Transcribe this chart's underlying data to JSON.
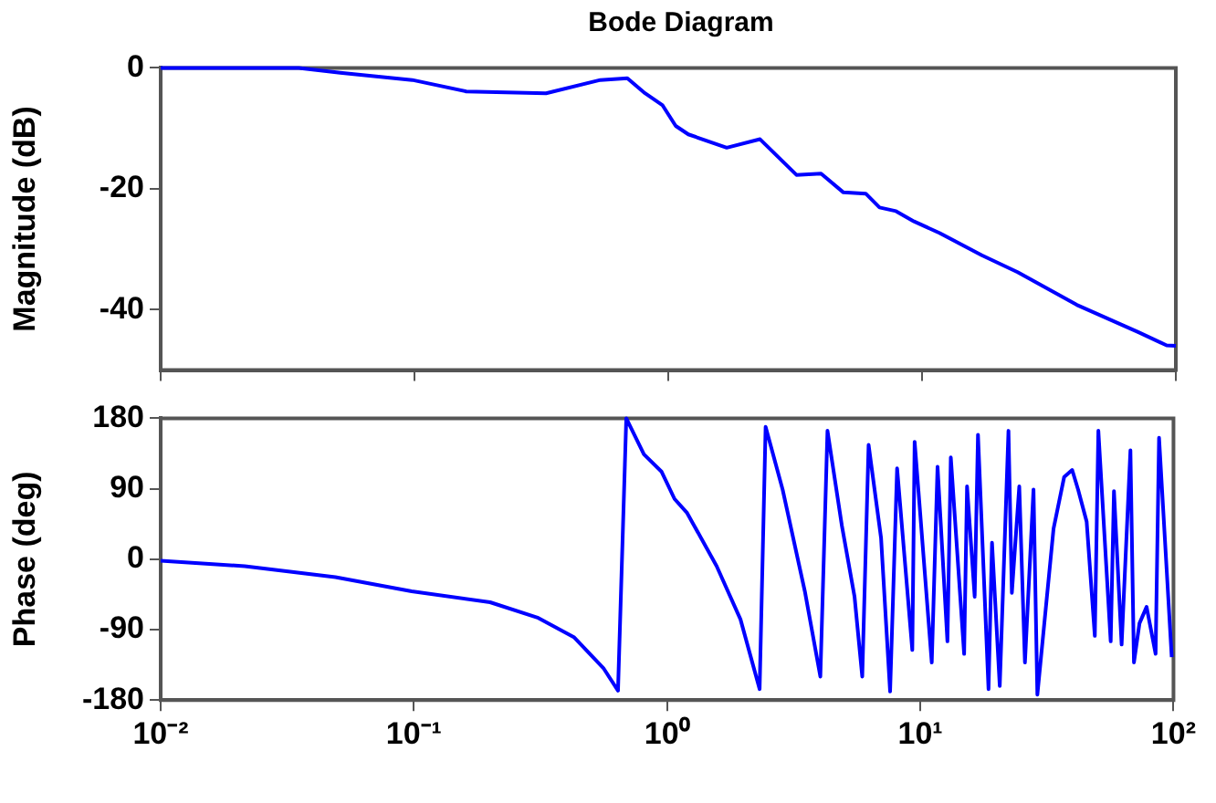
{
  "chart_data": [
    {
      "type": "line",
      "title": "Bode Diagram",
      "ylabel": "Magnitude (dB)",
      "log": "x",
      "marker": "none",
      "line_style": "solid",
      "grid": false,
      "legend": false,
      "tick_labels": "y",
      "xlim": [
        0.01,
        100
      ],
      "ylim": [
        -50,
        0
      ],
      "xticks": [
        {
          "value": 0.01,
          "label": null
        },
        {
          "value": 0.1,
          "label": null
        },
        {
          "value": 1,
          "label": null
        },
        {
          "value": 10,
          "label": null
        },
        {
          "value": 100,
          "label": null
        }
      ],
      "yticks": [
        -40,
        -20,
        0
      ],
      "x": [
        0.01,
        0.035,
        0.051,
        0.098,
        0.16,
        0.33,
        0.54,
        0.69,
        0.81,
        0.95,
        1.07,
        1.2,
        1.7,
        2.3,
        3.2,
        4.0,
        4.9,
        6.0,
        6.8,
        7.9,
        9.3,
        11.7,
        17.2,
        23.8,
        40.7,
        71,
        92,
        100
      ],
      "series": [
        {
          "color": "#0000ff",
          "values": [
            0,
            0,
            -0.8,
            -2.0,
            -3.9,
            -4.2,
            -2.0,
            -1.7,
            -4.2,
            -6.2,
            -9.6,
            -11,
            -13.2,
            -11.8,
            -17.7,
            -17.5,
            -20.6,
            -20.8,
            -23.1,
            -23.7,
            -25.4,
            -27.3,
            -31,
            -33.8,
            -39.2,
            -43.7,
            -45.9,
            -46
          ]
        }
      ]
    },
    {
      "type": "line",
      "ylabel": "Phase (deg)",
      "log": "x",
      "marker": "none",
      "line_style": "solid",
      "grid": false,
      "legend": false,
      "xlim": [
        0.01,
        100
      ],
      "ylim": [
        -180,
        180
      ],
      "xticks": [
        {
          "value": 0.01,
          "label": "10⁻²"
        },
        {
          "value": 0.1,
          "label": "10⁻¹"
        },
        {
          "value": 1,
          "label": "10⁰"
        },
        {
          "value": 10,
          "label": "10¹"
        },
        {
          "value": 100,
          "label": "10²"
        }
      ],
      "yticks": [
        -180,
        -90,
        0,
        90,
        180
      ],
      "x": [
        0.01,
        0.0215,
        0.049,
        0.098,
        0.2,
        0.31,
        0.43,
        0.56,
        0.64,
        0.69,
        0.81,
        0.95,
        1.07,
        1.2,
        1.57,
        1.95,
        2.32,
        2.45,
        2.86,
        3.5,
        4.03,
        4.3,
        4.9,
        5.5,
        5.9,
        6.25,
        7.0,
        7.6,
        8.1,
        9.3,
        9.5,
        11.1,
        11.7,
        12.8,
        13.2,
        14.9,
        15.3,
        16.4,
        16.9,
        18.6,
        19.2,
        20.6,
        22.3,
        23.0,
        24.6,
        25.9,
        28,
        29.0,
        33.6,
        37,
        39.8,
        42,
        45.4,
        48.9,
        50.5,
        56.5,
        58.2,
        62.4,
        67.6,
        69.8,
        73.4,
        78.3,
        85,
        87.7,
        98.4
      ],
      "series": [
        {
          "color": "#0000ff",
          "values": [
            -2,
            -9,
            -23,
            -41,
            -55,
            -75,
            -100,
            -139,
            -168,
            180,
            134,
            112,
            77,
            59,
            -9,
            -77,
            -166,
            169,
            89,
            -41,
            -150,
            164,
            43,
            -48,
            -150,
            146,
            27,
            -169,
            116,
            -116,
            150,
            -132,
            118,
            -105,
            130,
            -121,
            93,
            -48,
            159,
            -166,
            21,
            -162,
            164,
            -43,
            93,
            -132,
            89,
            -173,
            39,
            105,
            114,
            89,
            48,
            -98,
            164,
            -105,
            87,
            -109,
            139,
            -132,
            -82,
            -61,
            -121,
            155,
            -125
          ]
        }
      ]
    }
  ]
}
